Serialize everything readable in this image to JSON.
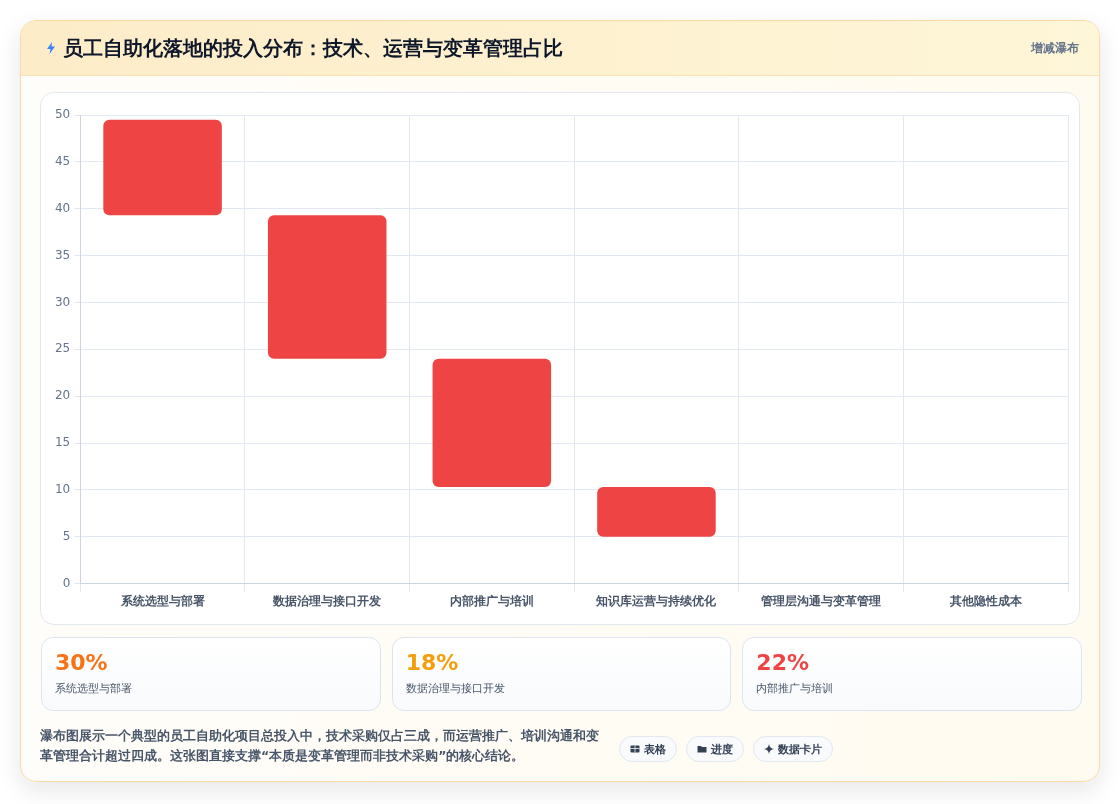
{
  "chart_data": [
    {
      "type": "bar",
      "title": "员工自助化落地的投入分布：技术、运营与变革管理占比",
      "subtitle": "增减瀑布",
      "categories": [
        "系统选型与部署",
        "数据治理与接口开发",
        "内部推广与培训",
        "知识库运营与持续优化",
        "管理层沟通与变革管理",
        "其他隐性成本"
      ],
      "base": [
        39.3,
        24,
        10.3,
        5,
        null,
        null
      ],
      "values": [
        10.2,
        15.3,
        13.7,
        5.3,
        null,
        null
      ],
      "color": "#ef4444",
      "ylim": [
        0,
        50
      ],
      "yticks": [
        0,
        5,
        10,
        15,
        20,
        25,
        30,
        35,
        40,
        45,
        50
      ],
      "grid": true,
      "annotations": [
        "瀑布图展示一个典型的员工自助化项目总投入中，技术采购仅占三成，而运营推广、培训沟通和变革管理合计超过四成。这张图直接支撑“本质是变革管理而非技术采购”的核心结论。",
        "表格",
        "进度",
        "数据卡片"
      ]
    },
    {
      "type": "other",
      "annotations": [
        "30%",
        "系统选型与部署",
        "18%",
        "数据治理与接口开发",
        "22%",
        "内部推广与培训"
      ]
    }
  ]
}
